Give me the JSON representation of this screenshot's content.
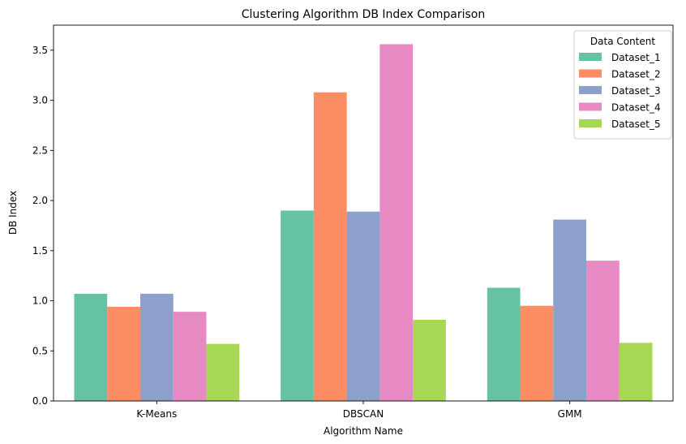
{
  "chart_data": {
    "type": "bar",
    "title": "Clustering Algorithm DB Index Comparison",
    "xlabel": "Algorithm Name",
    "ylabel": "DB Index",
    "categories": [
      "K-Means",
      "DBSCAN",
      "GMM"
    ],
    "ylim": [
      0,
      3.75
    ],
    "yticks": [
      "0.0",
      "0.5",
      "1.0",
      "1.5",
      "2.0",
      "2.5",
      "3.0",
      "3.5"
    ],
    "grid": false,
    "legend_title": "Data Content",
    "legend_position": "top-right",
    "series": [
      {
        "name": "Dataset_1",
        "color": "#66c2a5",
        "values": [
          1.07,
          1.9,
          1.13
        ]
      },
      {
        "name": "Dataset_2",
        "color": "#fc8d62",
        "values": [
          0.94,
          3.08,
          0.95
        ]
      },
      {
        "name": "Dataset_3",
        "color": "#8da0cb",
        "values": [
          1.07,
          1.89,
          1.81
        ]
      },
      {
        "name": "Dataset_4",
        "color": "#e78ac3",
        "values": [
          0.89,
          3.56,
          1.4
        ]
      },
      {
        "name": "Dataset_5",
        "color": "#a6d854",
        "values": [
          0.57,
          0.81,
          0.58
        ]
      }
    ]
  }
}
